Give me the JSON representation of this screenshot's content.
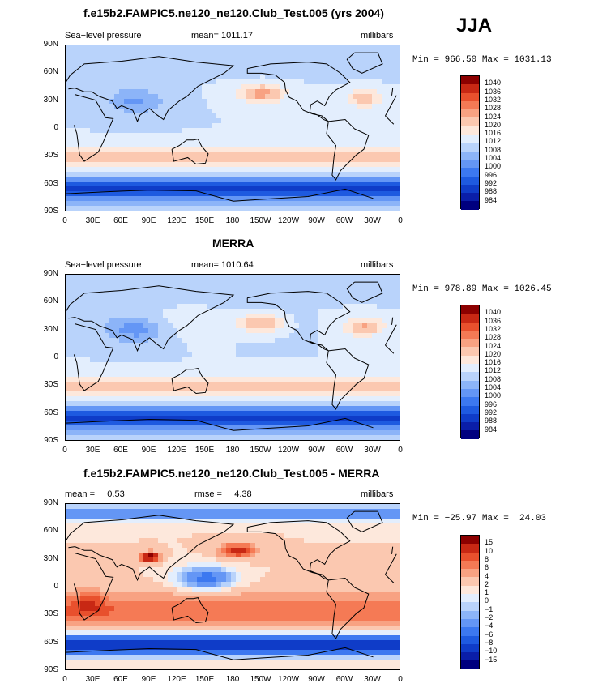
{
  "season": "JJA",
  "panels": [
    {
      "title": "f.e15b2.FAMPIC5.ne120_ne120.Club_Test.005 (yrs 2004)",
      "left_label": "Sea−level pressure",
      "center_label": "mean= 1011.17",
      "units": "millibars",
      "minmax": "Min = 966.50 Max = 1031.13",
      "colorbar": [
        "1040",
        "1036",
        "1032",
        "1028",
        "1024",
        "1020",
        "1016",
        "1012",
        "1008",
        "1004",
        "1000",
        "996",
        "992",
        "988",
        "984"
      ]
    },
    {
      "title": "MERRA",
      "left_label": "Sea−level pressure",
      "center_label": "mean= 1010.64",
      "units": "millibars",
      "minmax": "Min = 978.89 Max = 1026.45",
      "colorbar": [
        "1040",
        "1036",
        "1032",
        "1028",
        "1024",
        "1020",
        "1016",
        "1012",
        "1008",
        "1004",
        "1000",
        "996",
        "992",
        "988",
        "984"
      ]
    },
    {
      "title": "f.e15b2.FAMPIC5.ne120_ne120.Club_Test.005 - MERRA",
      "left_label": "mean =     0.53",
      "center_label": "rmse =     4.38",
      "units": "millibars",
      "minmax": "Min = −25.97 Max =  24.03",
      "colorbar": [
        "15",
        "10",
        "8",
        "6",
        "4",
        "2",
        "1",
        "0",
        "−1",
        "−2",
        "−4",
        "−6",
        "−8",
        "−10",
        "−15"
      ]
    }
  ],
  "lat_labels": [
    "90N",
    "60N",
    "30N",
    "0",
    "30S",
    "60S",
    "90S"
  ],
  "lon_labels": [
    "0",
    "30E",
    "60E",
    "90E",
    "120E",
    "150E",
    "180",
    "150W",
    "120W",
    "90W",
    "60W",
    "30W",
    "0"
  ],
  "colors": {
    "palette": [
      "#00007f",
      "#0a1ea8",
      "#0f3cc8",
      "#1e5ae0",
      "#3c78f0",
      "#6496f5",
      "#8cb4f8",
      "#b9d3fb",
      "#e3eefd",
      "#fde8dc",
      "#fbc8b0",
      "#f8a282",
      "#f57a55",
      "#e8502d",
      "#c82814",
      "#8c0000"
    ]
  }
}
